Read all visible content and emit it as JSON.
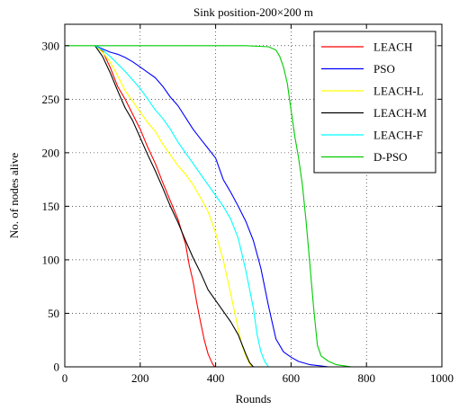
{
  "chart_data": {
    "type": "line",
    "title": "Sink position-200×200 m",
    "xlabel": "Rounds",
    "ylabel": "No. of nodes alive",
    "xlim": [
      0,
      1000
    ],
    "ylim": [
      0,
      320
    ],
    "xticks": [
      "0",
      "200",
      "400",
      "600",
      "800",
      "1000"
    ],
    "yticks": [
      "0",
      "50",
      "100",
      "150",
      "200",
      "250",
      "300"
    ],
    "grid": true,
    "legend_position": "top-right",
    "series": [
      {
        "name": "LEACH",
        "color": "#ff0000",
        "x": [
          80,
          100,
          120,
          140,
          160,
          180,
          200,
          220,
          240,
          260,
          280,
          300,
          320,
          330,
          340,
          350,
          360,
          370,
          380,
          390,
          395,
          400
        ],
        "y": [
          300,
          295,
          280,
          262,
          250,
          236,
          222,
          205,
          190,
          172,
          155,
          138,
          115,
          95,
          80,
          60,
          42,
          25,
          12,
          4,
          1,
          0
        ]
      },
      {
        "name": "PSO",
        "color": "#0000ff",
        "x": [
          80,
          100,
          120,
          140,
          160,
          180,
          200,
          220,
          240,
          260,
          280,
          300,
          320,
          340,
          360,
          380,
          400,
          420,
          440,
          460,
          480,
          500,
          520,
          540,
          560,
          580,
          600,
          620,
          650,
          700
        ],
        "y": [
          300,
          297,
          294,
          292,
          289,
          285,
          280,
          275,
          270,
          262,
          252,
          244,
          233,
          222,
          213,
          204,
          195,
          175,
          163,
          150,
          136,
          118,
          92,
          57,
          26,
          14,
          9,
          5,
          2,
          0
        ]
      },
      {
        "name": "LEACH-L",
        "color": "#ffff00",
        "x": [
          80,
          100,
          120,
          140,
          160,
          180,
          200,
          220,
          240,
          260,
          280,
          300,
          320,
          340,
          360,
          380,
          400,
          420,
          440,
          460,
          470,
          480,
          490,
          495
        ],
        "y": [
          300,
          294,
          285,
          272,
          258,
          248,
          238,
          228,
          220,
          208,
          198,
          188,
          180,
          170,
          158,
          145,
          125,
          100,
          68,
          35,
          20,
          10,
          3,
          0
        ]
      },
      {
        "name": "LEACH-M",
        "color": "#000000",
        "x": [
          80,
          100,
          120,
          140,
          160,
          180,
          200,
          220,
          240,
          260,
          280,
          300,
          320,
          340,
          360,
          380,
          400,
          420,
          440,
          460,
          480,
          490,
          500
        ],
        "y": [
          300,
          290,
          275,
          258,
          242,
          230,
          214,
          198,
          183,
          167,
          150,
          135,
          118,
          102,
          88,
          72,
          62,
          52,
          42,
          30,
          12,
          4,
          0
        ]
      },
      {
        "name": "LEACH-F",
        "color": "#00ffff",
        "x": [
          80,
          100,
          120,
          140,
          160,
          180,
          200,
          220,
          240,
          260,
          280,
          300,
          320,
          340,
          360,
          380,
          400,
          420,
          440,
          460,
          480,
          500,
          510,
          520,
          530,
          540
        ],
        "y": [
          300,
          296,
          290,
          283,
          276,
          268,
          260,
          250,
          240,
          232,
          222,
          210,
          200,
          190,
          180,
          170,
          160,
          150,
          138,
          120,
          90,
          55,
          30,
          14,
          5,
          0
        ]
      },
      {
        "name": "D-PSO",
        "color": "#00cc00",
        "x": [
          0,
          480,
          540,
          560,
          570,
          580,
          590,
          600,
          610,
          620,
          630,
          640,
          650,
          660,
          670,
          680,
          700,
          720,
          740,
          760
        ],
        "y": [
          300,
          300,
          299,
          296,
          290,
          280,
          265,
          240,
          215,
          195,
          170,
          135,
          95,
          55,
          20,
          10,
          5,
          2,
          1,
          0
        ]
      }
    ]
  }
}
